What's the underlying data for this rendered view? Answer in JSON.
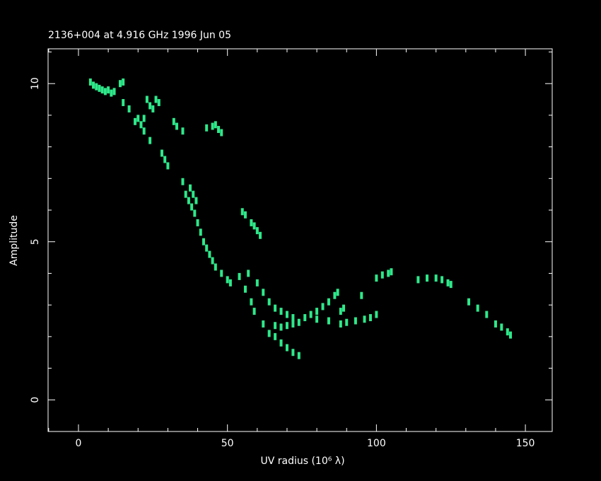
{
  "chart_data": {
    "type": "scatter",
    "title": "2136+004 at 4.916 GHz 1996 Jun 05",
    "xlabel": "UV radius  (10⁶ λ)",
    "ylabel": "Amplitude",
    "color": "#2ee88a",
    "xlim": [
      -10.2,
      159
    ],
    "ylim": [
      -1,
      11.1
    ],
    "xticks": [
      0,
      50,
      100,
      150
    ],
    "yticks": [
      0,
      5,
      10
    ],
    "xticks_minor": [
      -10,
      10,
      20,
      30,
      40,
      60,
      70,
      80,
      90,
      110,
      120,
      130,
      140
    ],
    "yticks_minor": [
      -1,
      1,
      2,
      3,
      4,
      6,
      7,
      8,
      9,
      11
    ],
    "x": [
      4,
      5,
      6,
      7,
      8,
      9,
      10,
      11,
      12,
      14,
      15,
      15,
      17,
      20,
      22,
      24,
      23,
      24,
      25,
      26,
      27,
      19,
      21,
      22,
      32,
      33,
      35,
      43,
      45,
      46,
      47,
      48,
      28,
      29,
      30,
      35,
      36,
      37,
      38,
      39,
      40,
      41,
      42,
      43,
      44,
      45,
      46,
      48,
      50,
      51,
      37.5,
      38.5,
      39.5,
      55,
      56,
      58,
      59,
      60,
      61,
      54,
      56,
      58,
      59,
      62,
      64,
      66,
      68,
      70,
      72,
      74,
      57,
      60,
      62,
      64,
      66,
      68,
      70,
      72,
      74,
      66,
      68,
      70,
      72,
      76,
      78,
      80,
      82,
      84,
      86,
      87,
      80,
      84,
      88,
      90,
      93,
      96,
      98,
      100,
      88,
      89,
      95,
      100,
      102,
      104,
      105,
      114,
      117,
      120,
      122,
      124,
      125,
      131,
      134,
      137,
      140,
      142,
      144,
      145
    ],
    "y": [
      10.05,
      9.95,
      9.9,
      9.85,
      9.8,
      9.75,
      9.8,
      9.7,
      9.75,
      10.0,
      10.05,
      9.4,
      9.2,
      8.9,
      8.5,
      8.2,
      9.5,
      9.3,
      9.2,
      9.5,
      9.4,
      8.8,
      8.7,
      8.9,
      8.8,
      8.65,
      8.5,
      8.6,
      8.65,
      8.7,
      8.55,
      8.45,
      7.8,
      7.6,
      7.4,
      6.9,
      6.5,
      6.3,
      6.1,
      5.9,
      5.6,
      5.3,
      5.0,
      4.8,
      4.6,
      4.4,
      4.2,
      4.0,
      3.8,
      3.7,
      6.7,
      6.5,
      6.3,
      5.95,
      5.85,
      5.6,
      5.5,
      5.35,
      5.2,
      3.9,
      3.5,
      3.1,
      2.8,
      2.4,
      2.1,
      2.0,
      1.8,
      1.65,
      1.5,
      1.4,
      4.0,
      3.7,
      3.4,
      3.1,
      2.9,
      2.8,
      2.7,
      2.6,
      2.45,
      2.35,
      2.3,
      2.35,
      2.4,
      2.6,
      2.7,
      2.8,
      2.95,
      3.1,
      3.3,
      3.4,
      2.55,
      2.5,
      2.4,
      2.45,
      2.5,
      2.55,
      2.6,
      2.7,
      2.8,
      2.9,
      3.3,
      3.85,
      3.95,
      4.0,
      4.05,
      3.8,
      3.85,
      3.85,
      3.8,
      3.7,
      3.65,
      3.1,
      2.9,
      2.7,
      2.4,
      2.3,
      2.15,
      2.05
    ]
  }
}
